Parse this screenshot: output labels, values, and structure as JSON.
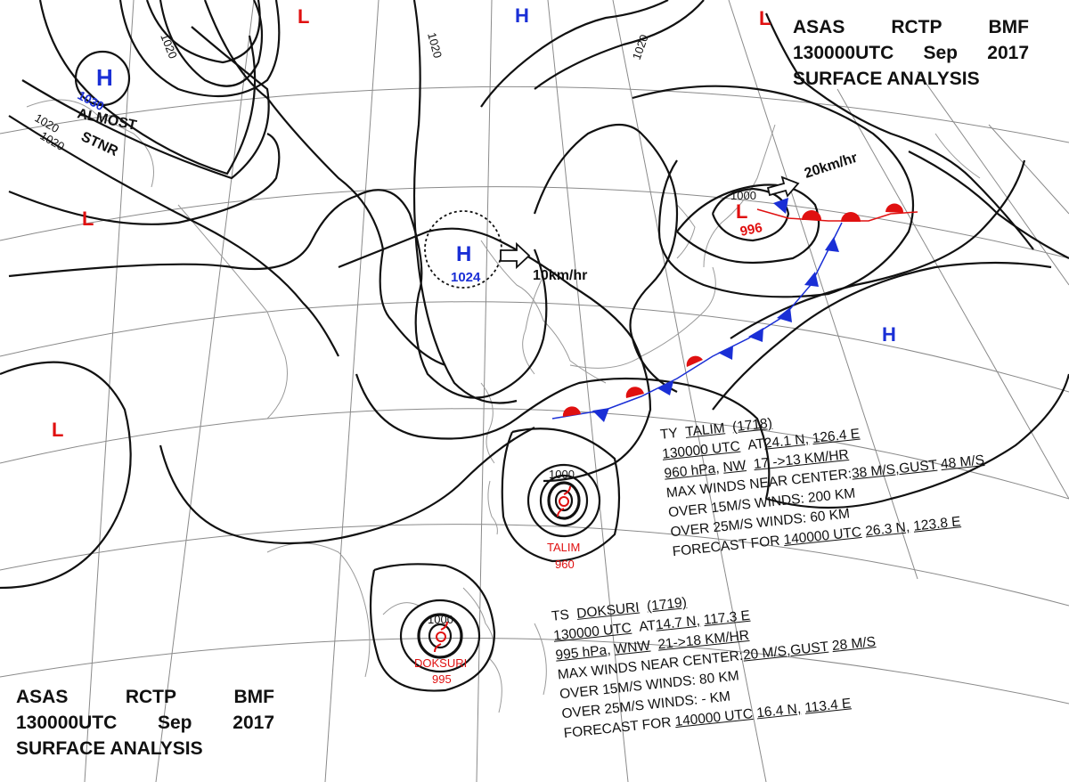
{
  "header": {
    "line1": [
      "ASAS",
      "RCTP",
      "BMF"
    ],
    "line2": [
      "130000UTC",
      "Sep",
      "2017"
    ],
    "line3": "SURFACE ANALYSIS"
  },
  "colors": {
    "high": "#1a2fd6",
    "low": "#e01010",
    "isobar": "#111111",
    "coast": "#9a9a9a",
    "grid": "#8a8a8a",
    "front_cold": "#1a2fd6",
    "front_warm": "#e01010"
  },
  "pressure_systems": [
    {
      "type": "H",
      "value": "1030",
      "note": [
        "ALMOST",
        "STNR"
      ]
    },
    {
      "type": "H",
      "value": "1024",
      "motion": "10km/hr"
    },
    {
      "type": "H"
    },
    {
      "type": "L",
      "value": "996",
      "motion": "20km/hr"
    },
    {
      "type": "L"
    },
    {
      "type": "L"
    },
    {
      "type": "L"
    },
    {
      "type": "L"
    }
  ],
  "isobar_labels": [
    "1020",
    "1020",
    "1020",
    "1020",
    "1020",
    "1000",
    "1000",
    "1000"
  ],
  "typhoons": [
    {
      "name": "TALIM",
      "pressure": "960"
    },
    {
      "name": "DOKSURI",
      "pressure": "995"
    }
  ],
  "talim": {
    "title": "TY",
    "name": "TALIM",
    "number": "(1718)",
    "time": "130000 UTC",
    "at_label": "AT",
    "lat": "24.1 N,",
    "lon": "126.4 E",
    "pressure": "960 hPa,",
    "direction": "NW",
    "speed": "17 ->13 KM/HR",
    "max_winds_label": "MAX WINDS NEAR CENTER:",
    "max_winds": "38 M/S,GUST",
    "gust": "48 M/S",
    "over15": "OVER 15M/S WINDS: 200 KM",
    "over25": "OVER 25M/S WINDS: 60 KM",
    "forecast_label": "FORECAST FOR",
    "forecast_time": "140000 UTC",
    "forecast_lat": "26.3 N,",
    "forecast_lon": "123.8 E"
  },
  "doksuri": {
    "title": "TS",
    "name": "DOKSURI",
    "number": "(1719)",
    "time": "130000 UTC",
    "at_label": "AT",
    "lat": "14.7 N,",
    "lon": "117.3 E",
    "pressure": "995 hPa,",
    "direction": "WNW",
    "speed": "21->18 KM/HR",
    "max_winds_label": "MAX WINDS NEAR CENTER:",
    "max_winds": "20 M/S,GUST",
    "gust": "28 M/S",
    "over15": "OVER 15M/S WINDS: 80 KM",
    "over25": "OVER 25M/S WINDS: - KM",
    "forecast_label": "FORECAST FOR",
    "forecast_time": "140000 UTC",
    "forecast_lat": "16.4 N,",
    "forecast_lon": "113.4 E"
  }
}
